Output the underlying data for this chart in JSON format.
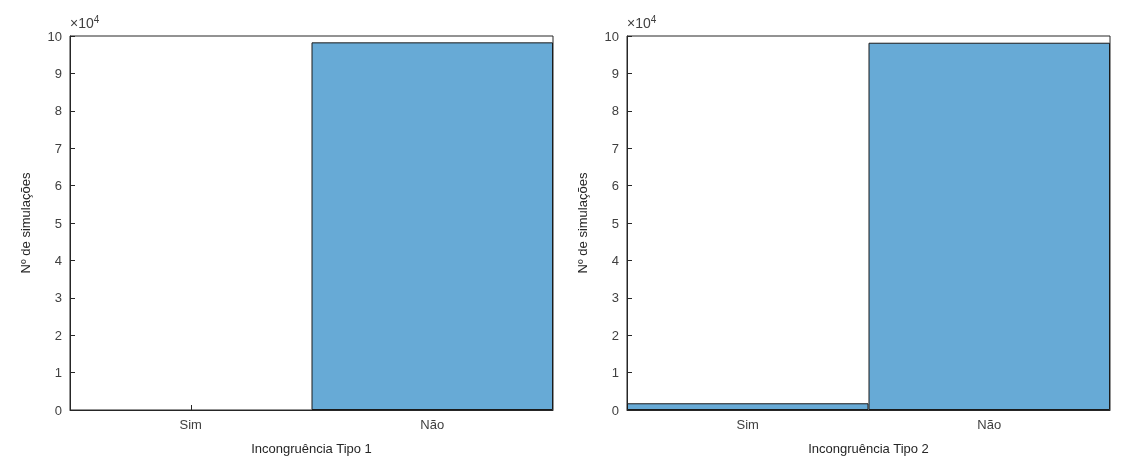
{
  "chart_data": [
    {
      "type": "bar",
      "xlabel": "Incongruência Tipo 1",
      "ylabel": "Nº de simulações",
      "categories": [
        "Sim",
        "Não"
      ],
      "values": [
        0,
        9.83
      ],
      "color": "#67aad6",
      "ylim": [
        0,
        10
      ],
      "yticks": [
        0,
        1,
        2,
        3,
        4,
        5,
        6,
        7,
        8,
        9,
        10
      ],
      "annotations": [
        "×10$^{4}$"
      ]
    },
    {
      "type": "bar",
      "xlabel": "Incongruência Tipo 2",
      "ylabel": "Nº de simulações",
      "categories": [
        "Sim",
        "Não"
      ],
      "values": [
        0.18,
        9.82
      ],
      "color": "#67aad6",
      "ylim": [
        0,
        10
      ],
      "yticks": [
        0,
        1,
        2,
        3,
        4,
        5,
        6,
        7,
        8,
        9,
        10
      ],
      "annotations": [
        "×10$^{4}$"
      ]
    }
  ]
}
